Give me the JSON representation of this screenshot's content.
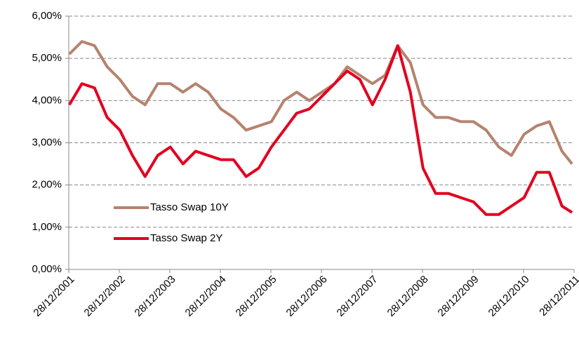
{
  "chart_data": {
    "type": "line",
    "x": [
      2002.0,
      2002.25,
      2002.5,
      2002.75,
      2003.0,
      2003.25,
      2003.5,
      2003.75,
      2004.0,
      2004.25,
      2004.5,
      2004.75,
      2005.0,
      2005.25,
      2005.5,
      2005.75,
      2006.0,
      2006.25,
      2006.5,
      2006.75,
      2007.0,
      2007.25,
      2007.5,
      2007.75,
      2008.0,
      2008.25,
      2008.5,
      2008.75,
      2009.0,
      2009.25,
      2009.5,
      2009.75,
      2010.0,
      2010.25,
      2010.5,
      2010.75,
      2011.0,
      2011.25,
      2011.5,
      2011.75,
      2011.95
    ],
    "series": [
      {
        "name": "Tasso Swap 10Y",
        "color": "#b5836f",
        "values": [
          5.1,
          5.4,
          5.3,
          4.8,
          4.5,
          4.1,
          3.9,
          4.4,
          4.4,
          4.2,
          4.4,
          4.2,
          3.8,
          3.6,
          3.3,
          3.4,
          3.5,
          4.0,
          4.2,
          4.0,
          4.2,
          4.4,
          4.8,
          4.6,
          4.4,
          4.6,
          5.3,
          4.9,
          3.9,
          3.6,
          3.6,
          3.5,
          3.5,
          3.3,
          2.9,
          2.7,
          3.2,
          3.4,
          3.5,
          2.8,
          2.5
        ]
      },
      {
        "name": "Tasso Swap 2Y",
        "color": "#e2001f",
        "values": [
          3.9,
          4.4,
          4.3,
          3.6,
          3.3,
          2.7,
          2.2,
          2.7,
          2.9,
          2.5,
          2.8,
          2.7,
          2.6,
          2.6,
          2.2,
          2.4,
          2.9,
          3.3,
          3.7,
          3.8,
          4.1,
          4.4,
          4.7,
          4.5,
          3.9,
          4.5,
          5.3,
          4.2,
          2.4,
          1.8,
          1.8,
          1.7,
          1.6,
          1.3,
          1.3,
          1.5,
          1.7,
          2.3,
          2.3,
          1.5,
          1.35
        ]
      }
    ],
    "xlim": [
      2001.99,
      2011.99
    ],
    "xticks": [
      {
        "value": 2001.99,
        "label": "28/12/2001"
      },
      {
        "value": 2002.99,
        "label": "28/12/2002"
      },
      {
        "value": 2003.99,
        "label": "28/12/2003"
      },
      {
        "value": 2004.99,
        "label": "28/12/2004"
      },
      {
        "value": 2005.99,
        "label": "28/12/2005"
      },
      {
        "value": 2006.99,
        "label": "28/12/2006"
      },
      {
        "value": 2007.99,
        "label": "28/12/2007"
      },
      {
        "value": 2008.99,
        "label": "28/12/2008"
      },
      {
        "value": 2009.99,
        "label": "28/12/2009"
      },
      {
        "value": 2010.99,
        "label": "28/12/2010"
      },
      {
        "value": 2011.99,
        "label": "28/12/2011"
      }
    ],
    "ylim": [
      0,
      6
    ],
    "yticks": [
      {
        "value": 0,
        "label": "0,00%"
      },
      {
        "value": 1,
        "label": "1,00%"
      },
      {
        "value": 2,
        "label": "2,00%"
      },
      {
        "value": 3,
        "label": "3,00%"
      },
      {
        "value": 4,
        "label": "4,00%"
      },
      {
        "value": 5,
        "label": "5,00%"
      },
      {
        "value": 6,
        "label": "6,00%"
      }
    ],
    "grid": true,
    "legend": "left"
  }
}
